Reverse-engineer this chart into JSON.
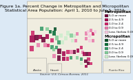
{
  "title_line1": "Figure 1a. Percent Change in Metropolitan and Micropolitan",
  "title_line2": "Statistical Area Population: April 1, 2010 to July 1, 2011",
  "title_fontsize": 4.5,
  "title_bg": "#f5f0dc",
  "map_bg": "#dce9f5",
  "land_bg": "#f0ede0",
  "legend_metropolitan": "Metropolitan",
  "legend_micropolitan": "Micropolitan",
  "metro_colors": [
    "#6b0035",
    "#a0004a",
    "#cc2266",
    "#e87aaa",
    "#f5c8de",
    "#ffffff"
  ],
  "metro_labels": [
    "5.0 or more",
    "2.5 to 4.9",
    "1.0 to 2.4",
    "0.0 to 0.9",
    "Loss (below 0.0)",
    ""
  ],
  "micro_colors": [
    "#004d25",
    "#006b35",
    "#339966",
    "#80cc99",
    "#cceecc",
    "#ffffff"
  ],
  "micro_labels": [
    "5.0 or more",
    "2.5 to 4.9",
    "1.0 to 2.4",
    "0.0 to 0.9",
    "Loss (below 0.0)",
    ""
  ],
  "note_text": "Source: U.S. Census Bureau, 2011",
  "note_fontsize": 3.0,
  "border_color": "#888888",
  "legend_fontsize": 3.2,
  "legend_header_fontsize": 3.8
}
